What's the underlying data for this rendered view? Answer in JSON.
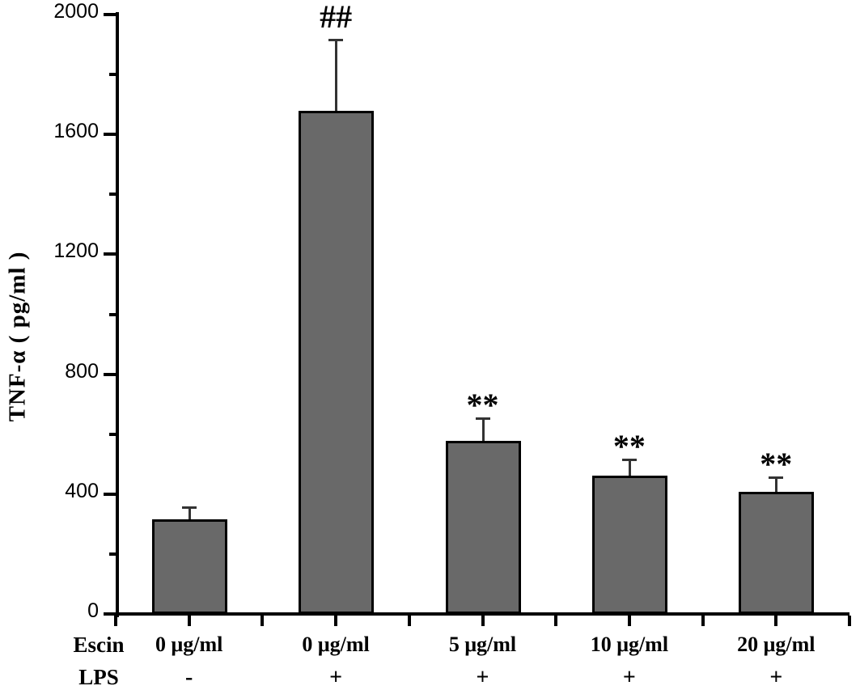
{
  "chart_data": {
    "type": "bar",
    "title": "",
    "ylabel": "TNF-α ( pg/ml )",
    "xlabel": "",
    "ylim": [
      0,
      2000
    ],
    "yticks_major": [
      0,
      400,
      800,
      1200,
      1600,
      2000
    ],
    "yticks_minor": [
      200,
      600,
      1000,
      1400,
      1800
    ],
    "grid": false,
    "legend": false,
    "bar_color": "#696969",
    "bar_border_color": "#000000",
    "error_bar_color": "#333333",
    "x_row_labels": {
      "escin": "Escin",
      "lps": "LPS"
    },
    "categories": [
      {
        "escin": "0 μg/ml",
        "lps": "-",
        "value": 315,
        "error": 40,
        "annotation": ""
      },
      {
        "escin": "0 μg/ml",
        "lps": "+",
        "value": 1680,
        "error": 235,
        "annotation": "##"
      },
      {
        "escin": "5 μg/ml",
        "lps": "+",
        "value": 578,
        "error": 76,
        "annotation": "**"
      },
      {
        "escin": "10 μg/ml",
        "lps": "+",
        "value": 462,
        "error": 54,
        "annotation": "**"
      },
      {
        "escin": "20 μg/ml",
        "lps": "+",
        "value": 408,
        "error": 48,
        "annotation": "**"
      }
    ]
  }
}
